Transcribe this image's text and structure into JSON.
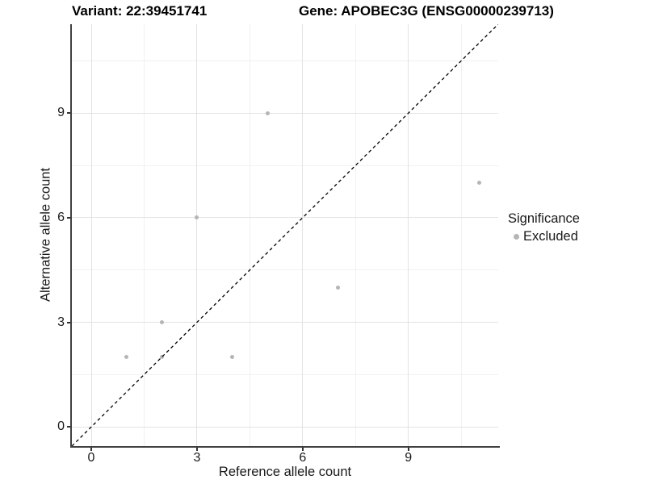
{
  "chart_data": {
    "type": "scatter",
    "title_left": "Variant: 22:39451741",
    "title_right": "Gene: APOBEC3G (ENSG00000239713)",
    "xlabel": "Reference allele count",
    "ylabel": "Alternative allele count",
    "xlim": [
      -0.55,
      11.55
    ],
    "ylim": [
      -0.55,
      11.55
    ],
    "x_breaks": [
      0,
      3,
      6,
      9
    ],
    "y_breaks": [
      0,
      3,
      6,
      9
    ],
    "x_minor_breaks": [
      1.5,
      4.5,
      7.5,
      10.5
    ],
    "y_minor_breaks": [
      1.5,
      4.5,
      7.5,
      10.5
    ],
    "grid": true,
    "legend_position": "right",
    "series": [
      {
        "name": "Excluded",
        "color": "#b5b5b5",
        "points": [
          [
            1,
            2
          ],
          [
            2,
            2
          ],
          [
            2,
            3
          ],
          [
            3,
            6
          ],
          [
            4,
            2
          ],
          [
            5,
            9
          ],
          [
            7,
            4
          ],
          [
            11,
            7
          ]
        ]
      }
    ],
    "reference_line": {
      "type": "identity",
      "style": "dashed",
      "color": "#000000"
    },
    "legend": {
      "title": "Significance",
      "items": [
        {
          "label": "Excluded",
          "color": "#b5b5b5"
        }
      ]
    },
    "colors": {
      "grid_major": "#e3e3e3",
      "grid_minor": "#f1f1f1",
      "axis_line": "#404040",
      "text": "#1a1a1a"
    }
  }
}
